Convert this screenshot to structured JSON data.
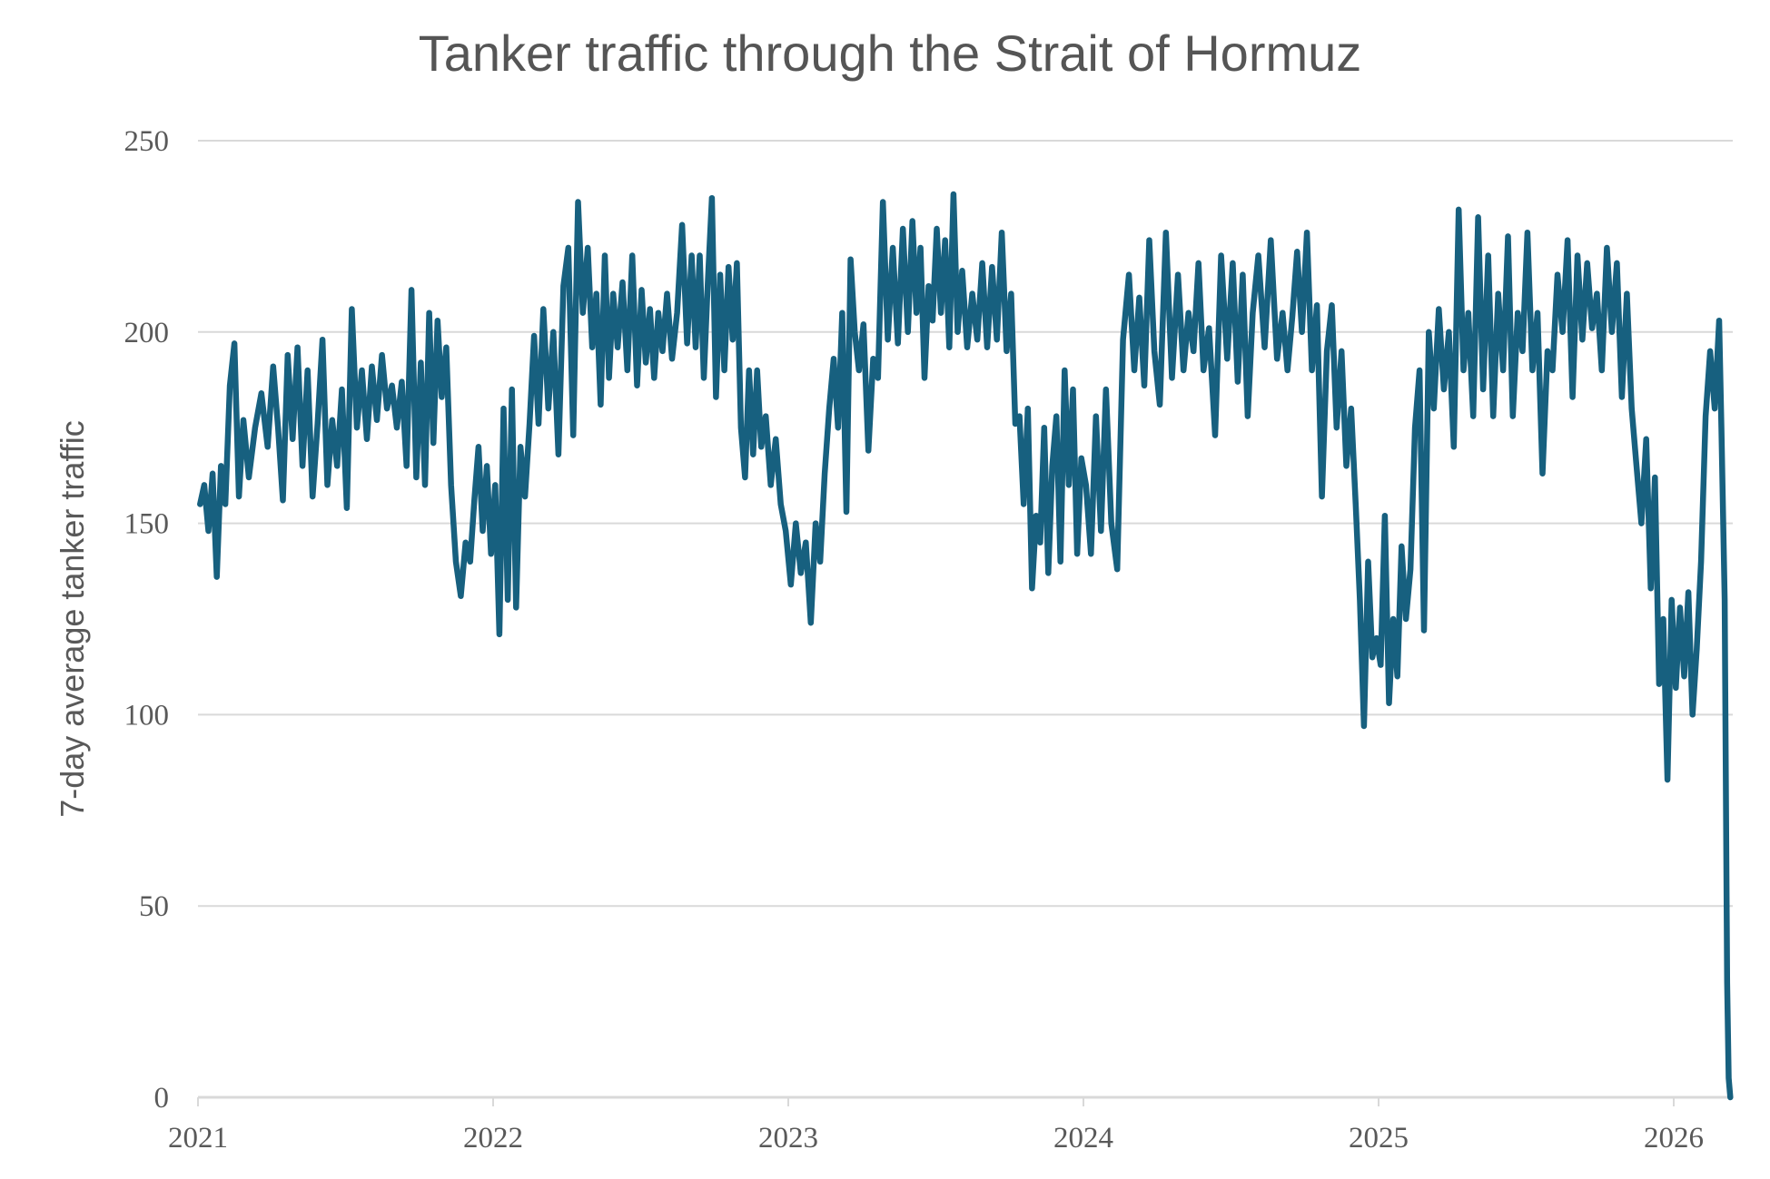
{
  "chart_data": {
    "type": "line",
    "title": "Tanker traffic through the Strait of Hormuz",
    "xlabel": "",
    "ylabel": "7-day average tanker traffic",
    "ylim": [
      0,
      250
    ],
    "yticks": [
      "0",
      "50",
      "100",
      "150",
      "200",
      "250"
    ],
    "xlim": [
      "2021-01-01",
      "2026-03-12"
    ],
    "xticks": [
      "2021",
      "2022",
      "2023",
      "2024",
      "2025",
      "2026"
    ],
    "grid": "horizontal",
    "legend": "none",
    "colors": {
      "line": "#17607f",
      "grid": "#d9d9d9",
      "text": "#595959"
    },
    "series": [
      {
        "monthly_values": [
          {
            "month": "2021-01",
            "values": [
              155,
              160,
              148,
              163,
              136,
              165
            ]
          },
          {
            "month": "2021-02",
            "values": [
              155,
              186,
              197,
              157,
              177
            ]
          },
          {
            "month": "2021-03",
            "values": [
              162,
              175,
              184,
              170
            ]
          },
          {
            "month": "2021-04",
            "values": [
              191,
              175,
              156,
              194,
              172
            ]
          },
          {
            "month": "2021-05",
            "values": [
              196,
              165,
              190,
              157,
              176
            ]
          },
          {
            "month": "2021-06",
            "values": [
              198,
              160,
              177,
              165,
              185
            ]
          },
          {
            "month": "2021-07",
            "values": [
              154,
              206,
              175,
              190,
              172
            ]
          },
          {
            "month": "2021-08",
            "values": [
              191,
              177,
              194,
              180,
              186
            ]
          },
          {
            "month": "2021-09",
            "values": [
              175,
              187,
              165,
              211,
              162
            ]
          },
          {
            "month": "2021-10",
            "values": [
              192,
              160,
              205,
              171,
              203,
              183
            ]
          },
          {
            "month": "2021-11",
            "values": [
              196,
              160,
              140,
              131,
              145
            ]
          },
          {
            "month": "2021-12",
            "values": [
              140,
              156,
              170,
              148,
              165,
              142
            ]
          },
          {
            "month": "2022-01",
            "values": [
              160,
              121,
              180,
              130,
              185,
              128
            ]
          },
          {
            "month": "2022-02",
            "values": [
              170,
              157,
              176,
              199,
              176
            ]
          },
          {
            "month": "2022-03",
            "values": [
              206,
              180,
              200,
              168,
              212
            ]
          },
          {
            "month": "2022-04",
            "values": [
              222,
              173,
              234,
              205,
              222
            ]
          },
          {
            "month": "2022-05",
            "values": [
              196,
              210,
              181,
              220,
              188,
              210
            ]
          },
          {
            "month": "2022-06",
            "values": [
              196,
              213,
              190,
              220,
              186
            ]
          },
          {
            "month": "2022-07",
            "values": [
              211,
              192,
              206,
              188,
              205,
              195
            ]
          },
          {
            "month": "2022-08",
            "values": [
              210,
              193,
              205,
              228,
              197
            ]
          },
          {
            "month": "2022-09",
            "values": [
              220,
              196,
              220,
              188,
              213,
              235
            ]
          },
          {
            "month": "2022-10",
            "values": [
              183,
              215,
              190,
              217,
              198,
              218
            ]
          },
          {
            "month": "2022-11",
            "values": [
              175,
              162,
              190,
              168,
              190,
              170
            ]
          },
          {
            "month": "2022-12",
            "values": [
              178,
              160,
              172,
              155,
              148
            ]
          },
          {
            "month": "2023-01",
            "values": [
              134,
              150,
              137,
              145,
              124
            ]
          },
          {
            "month": "2023-02",
            "values": [
              150,
              140,
              163,
              180,
              193
            ]
          },
          {
            "month": "2023-03",
            "values": [
              175,
              205,
              153,
              219,
              200,
              190
            ]
          },
          {
            "month": "2023-04",
            "values": [
              202,
              169,
              193,
              188,
              234
            ]
          },
          {
            "month": "2023-05",
            "values": [
              198,
              222,
              197,
              227,
              200
            ]
          },
          {
            "month": "2023-06",
            "values": [
              229,
              205,
              222,
              188,
              212,
              203
            ]
          },
          {
            "month": "2023-07",
            "values": [
              227,
              205,
              224,
              196,
              236,
              200
            ]
          },
          {
            "month": "2023-08",
            "values": [
              216,
              196,
              210,
              198,
              218
            ]
          },
          {
            "month": "2023-09",
            "values": [
              196,
              217,
              198,
              226,
              195
            ]
          },
          {
            "month": "2023-10",
            "values": [
              210,
              176,
              178,
              155,
              180,
              133
            ]
          },
          {
            "month": "2023-11",
            "values": [
              152,
              145,
              175,
              137,
              165,
              178
            ]
          },
          {
            "month": "2023-12",
            "values": [
              140,
              190,
              160,
              185,
              142,
              167
            ]
          },
          {
            "month": "2024-01",
            "values": [
              160,
              142,
              178,
              148,
              185
            ]
          },
          {
            "month": "2024-02",
            "values": [
              150,
              138,
              198,
              215
            ]
          },
          {
            "month": "2024-03",
            "values": [
              190,
              209,
              186,
              224,
              195
            ]
          },
          {
            "month": "2024-04",
            "values": [
              181,
              226,
              188,
              215
            ]
          },
          {
            "month": "2024-05",
            "values": [
              190,
              205,
              195,
              218,
              190
            ]
          },
          {
            "month": "2024-06",
            "values": [
              201,
              173,
              220,
              193
            ]
          },
          {
            "month": "2024-07",
            "values": [
              218,
              187,
              215,
              178,
              205
            ]
          },
          {
            "month": "2024-08",
            "values": [
              220,
              196,
              224,
              193
            ]
          },
          {
            "month": "2024-09",
            "values": [
              205,
              190,
              204,
              221,
              200
            ]
          },
          {
            "month": "2024-10",
            "values": [
              226,
              190,
              207,
              157,
              195
            ]
          },
          {
            "month": "2024-11",
            "values": [
              207,
              175,
              195,
              165,
              180
            ]
          },
          {
            "month": "2024-12",
            "values": [
              155,
              130,
              97,
              140,
              115,
              120
            ]
          },
          {
            "month": "2025-01",
            "values": [
              113,
              152,
              103,
              125,
              110,
              144
            ]
          },
          {
            "month": "2025-02",
            "values": [
              125,
              138,
              175,
              190,
              122
            ]
          },
          {
            "month": "2025-03",
            "values": [
              200,
              180,
              206,
              185,
              200
            ]
          },
          {
            "month": "2025-04",
            "values": [
              170,
              232,
              190,
              205,
              178
            ]
          },
          {
            "month": "2025-05",
            "values": [
              230,
              185,
              220,
              178,
              210
            ]
          },
          {
            "month": "2025-06",
            "values": [
              190,
              225,
              178,
              205,
              195
            ]
          },
          {
            "month": "2025-07",
            "values": [
              226,
              190,
              205,
              163,
              195
            ]
          },
          {
            "month": "2025-08",
            "values": [
              190,
              215,
              200,
              224,
              183
            ]
          },
          {
            "month": "2025-09",
            "values": [
              220,
              198,
              218,
              201,
              210
            ]
          },
          {
            "month": "2025-10",
            "values": [
              190,
              222,
              200,
              218,
              183
            ]
          },
          {
            "month": "2025-11",
            "values": [
              210,
              180,
              165,
              150,
              172
            ]
          },
          {
            "month": "2025-12",
            "values": [
              133,
              162,
              108,
              125,
              83,
              130
            ]
          },
          {
            "month": "2026-01",
            "values": [
              107,
              128,
              110,
              132,
              100,
              117
            ]
          },
          {
            "month": "2026-02",
            "values": [
              140,
              178,
              195,
              180,
              203
            ]
          }
        ],
        "points": [
          [
            "2026-03-01",
            175
          ],
          [
            "2026-03-05",
            130
          ],
          [
            "2026-03-08",
            30
          ],
          [
            "2026-03-10",
            5
          ],
          [
            "2026-03-12",
            0
          ]
        ]
      }
    ]
  }
}
